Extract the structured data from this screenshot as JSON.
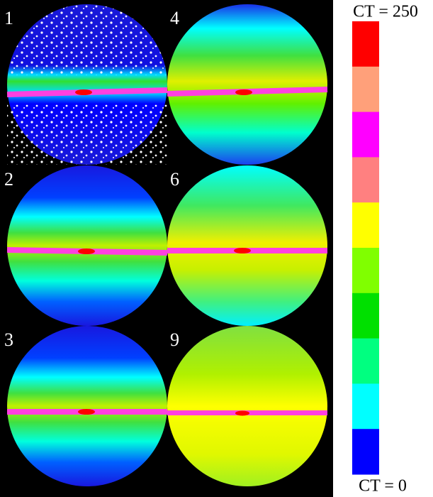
{
  "panels": [
    {
      "label": "1"
    },
    {
      "label": "4"
    },
    {
      "label": "2"
    },
    {
      "label": "6"
    },
    {
      "label": "3"
    },
    {
      "label": "9"
    }
  ],
  "colorbar": {
    "top_label": "CT = 250",
    "bottom_label": "CT = 0",
    "colors": [
      "#ff0000",
      "#ffa07a",
      "#ff00ff",
      "#ff8080",
      "#ffff00",
      "#80ff00",
      "#00e000",
      "#00ff80",
      "#00ffff",
      "#0000ff"
    ]
  }
}
